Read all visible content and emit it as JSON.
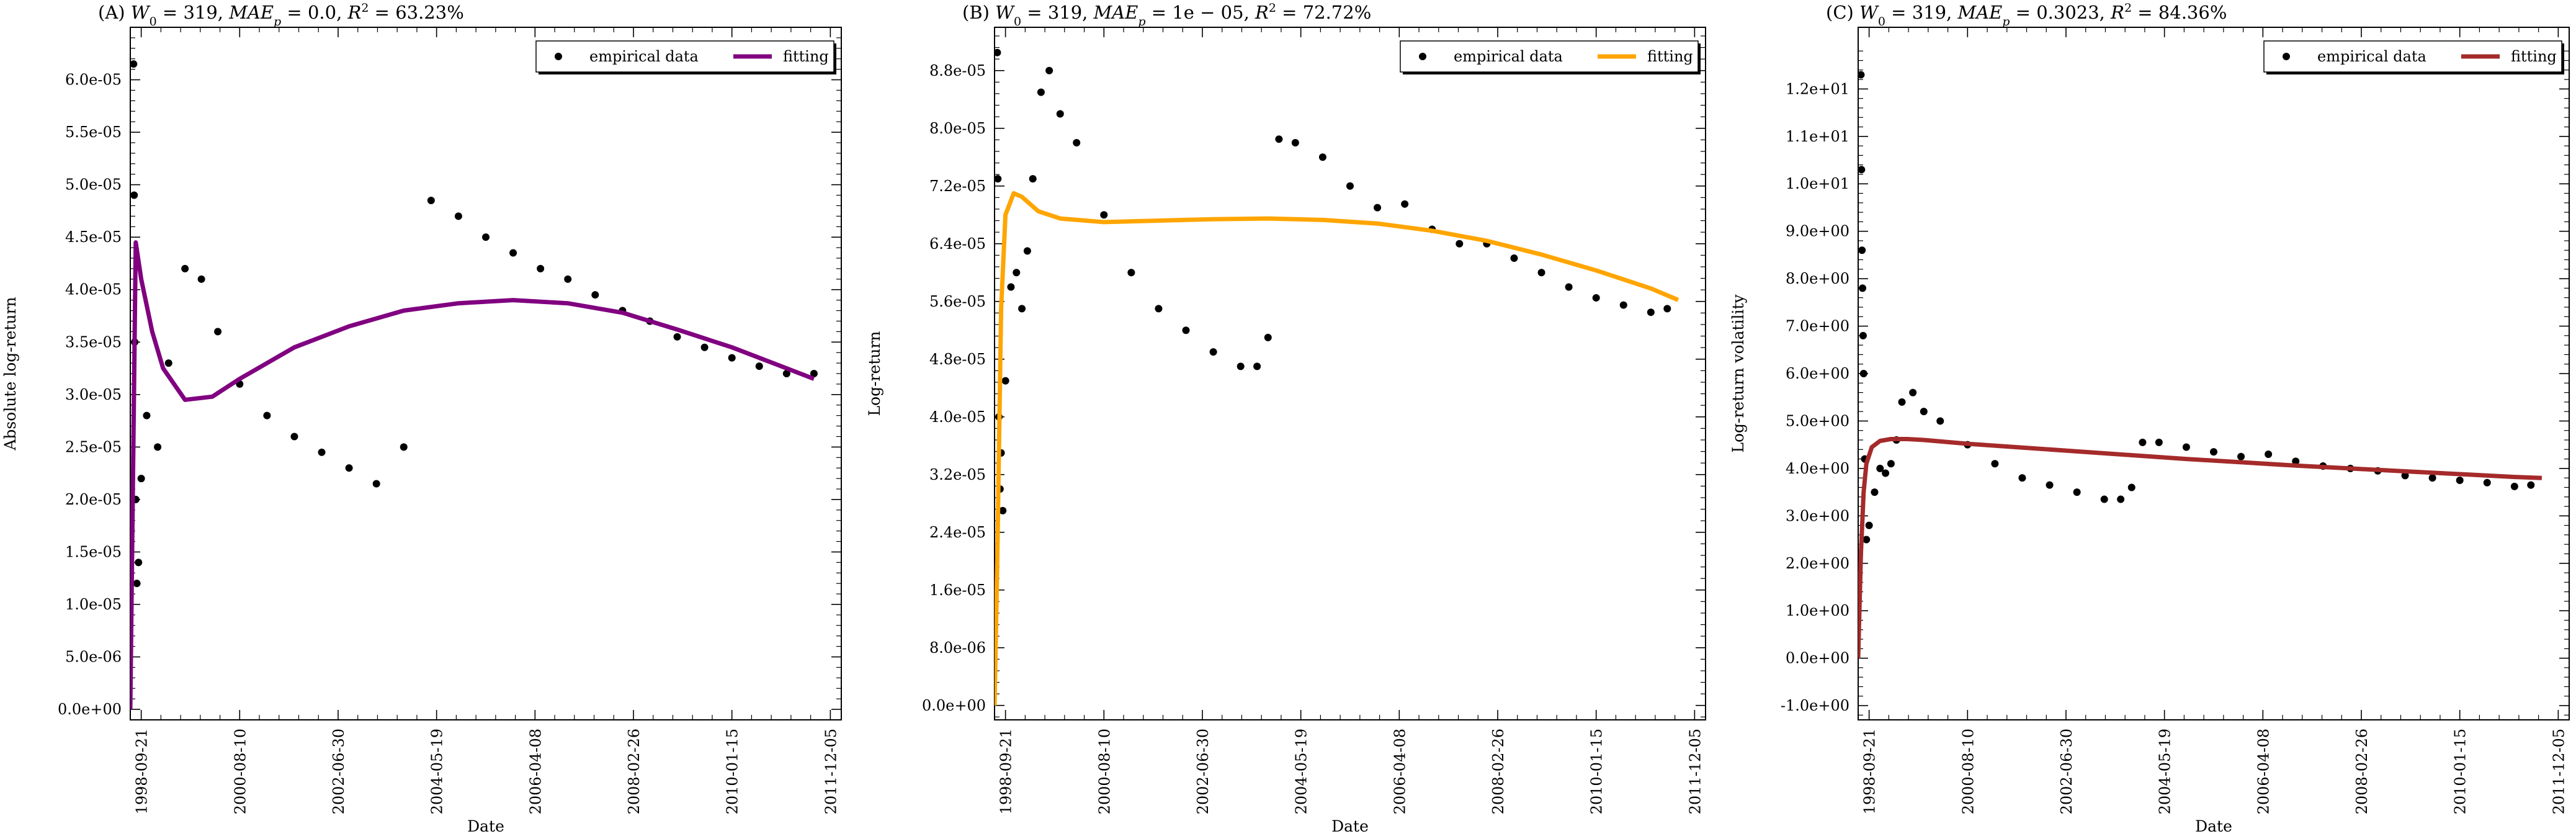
{
  "chart_data": [
    {
      "type": "scatter",
      "title": "(A) W_0 = 319, MAE_p = 0.0, R^2 = 63.23%",
      "title_parts": {
        "panel": "(A)",
        "w0": "319",
        "mae": "0.0",
        "r2": "63.23%"
      },
      "xlabel": "Date",
      "ylabel": "Absolute log-return",
      "xticks": [
        "1998-09-21",
        "2000-08-10",
        "2002-06-30",
        "2004-05-19",
        "2006-04-08",
        "2008-02-26",
        "2010-01-15",
        "2011-12-05"
      ],
      "ylim": [
        -1e-06,
        6.5e-05
      ],
      "yticks": [
        0.0,
        5e-06,
        1e-05,
        1.5e-05,
        2e-05,
        2.5e-05,
        3e-05,
        3.5e-05,
        4e-05,
        4.5e-05,
        5e-05,
        5.5e-05,
        6e-05
      ],
      "ytick_labels": [
        "0.0e+00",
        "5.0e-06",
        "1.0e-05",
        "1.5e-05",
        "2.0e-05",
        "2.5e-05",
        "3.0e-05",
        "3.5e-05",
        "4.0e-05",
        "4.5e-05",
        "5.0e-05",
        "5.5e-05",
        "6.0e-05"
      ],
      "legend": {
        "placement": "top-right",
        "empirical_label": "empirical data",
        "fitting_label": "fitting"
      },
      "fit_color": "#800080",
      "series": [
        {
          "name": "empirical data",
          "x": [
            0.06,
            0.07,
            0.08,
            0.1,
            0.12,
            0.15,
            0.2,
            0.3,
            0.5,
            0.7,
            1.0,
            1.3,
            1.6,
            2.0,
            2.5,
            3.0,
            3.5,
            4.0,
            4.5,
            5.0,
            5.5,
            6.0,
            6.5,
            7.0,
            7.5,
            8.0,
            8.5,
            9.0,
            9.5,
            10.0,
            10.5,
            11.0,
            11.5,
            12.0,
            12.5
          ],
          "y": [
            6.15e-05,
            4.9e-05,
            3.5e-05,
            2e-05,
            1.2e-05,
            1.4e-05,
            2.2e-05,
            2.8e-05,
            2.5e-05,
            3.3e-05,
            4.2e-05,
            4.1e-05,
            3.6e-05,
            3.1e-05,
            2.8e-05,
            2.6e-05,
            2.45e-05,
            2.3e-05,
            2.15e-05,
            2.5e-05,
            4.85e-05,
            4.7e-05,
            4.5e-05,
            4.35e-05,
            4.2e-05,
            4.1e-05,
            3.95e-05,
            3.8e-05,
            3.7e-05,
            3.55e-05,
            3.45e-05,
            3.35e-05,
            3.27e-05,
            3.2e-05,
            3.2e-05
          ]
        },
        {
          "name": "fitting",
          "x": [
            0.0,
            0.1,
            0.2,
            0.4,
            0.6,
            1.0,
            1.5,
            2.0,
            3.0,
            4.0,
            5.0,
            6.0,
            7.0,
            8.0,
            9.0,
            10.0,
            11.0,
            12.0,
            12.5
          ],
          "y": [
            0.0,
            4.45e-05,
            4.1e-05,
            3.6e-05,
            3.25e-05,
            2.95e-05,
            2.98e-05,
            3.15e-05,
            3.45e-05,
            3.65e-05,
            3.8e-05,
            3.87e-05,
            3.9e-05,
            3.87e-05,
            3.78e-05,
            3.62e-05,
            3.45e-05,
            3.25e-05,
            3.15e-05
          ]
        }
      ]
    },
    {
      "type": "scatter",
      "title": "(B) W_0 = 319, MAE_p = 1e-05, R^2 = 72.72%",
      "title_parts": {
        "panel": "(B)",
        "w0": "319",
        "mae": "1e − 05",
        "r2": "72.72%"
      },
      "xlabel": "Date",
      "ylabel": "Log-return",
      "xticks": [
        "1998-09-21",
        "2000-08-10",
        "2002-06-30",
        "2004-05-19",
        "2006-04-08",
        "2008-02-26",
        "2010-01-15",
        "2011-12-05"
      ],
      "ylim": [
        -2e-06,
        9.4e-05
      ],
      "yticks": [
        0.0,
        8e-06,
        1.6e-05,
        2.4e-05,
        3.2e-05,
        4e-05,
        4.8e-05,
        5.6e-05,
        6.4e-05,
        7.2e-05,
        8e-05,
        8.8e-05
      ],
      "ytick_labels": [
        "0.0e+00",
        "8.0e-06",
        "1.6e-05",
        "2.4e-05",
        "3.2e-05",
        "4.0e-05",
        "4.8e-05",
        "5.6e-05",
        "6.4e-05",
        "7.2e-05",
        "8.0e-05",
        "8.8e-05"
      ],
      "legend": {
        "placement": "top-right",
        "empirical_label": "empirical data",
        "fitting_label": "fitting"
      },
      "fit_color": "#FFA500",
      "series": [
        {
          "name": "empirical data",
          "x": [
            0.05,
            0.06,
            0.08,
            0.1,
            0.12,
            0.15,
            0.2,
            0.3,
            0.4,
            0.5,
            0.6,
            0.7,
            0.85,
            1.0,
            1.2,
            1.5,
            2.0,
            2.5,
            3.0,
            3.5,
            4.0,
            4.5,
            4.8,
            5.0,
            5.2,
            5.5,
            6.0,
            6.5,
            7.0,
            7.5,
            8.0,
            8.5,
            9.0,
            9.5,
            10.0,
            10.5,
            11.0,
            11.5,
            12.0,
            12.3
          ],
          "y": [
            9.05e-05,
            7.3e-05,
            4e-05,
            3e-05,
            3.5e-05,
            2.7e-05,
            4.5e-05,
            5.8e-05,
            6e-05,
            5.5e-05,
            6.3e-05,
            7.3e-05,
            8.5e-05,
            8.8e-05,
            8.2e-05,
            7.8e-05,
            6.8e-05,
            6e-05,
            5.5e-05,
            5.2e-05,
            4.9e-05,
            4.7e-05,
            4.7e-05,
            5.1e-05,
            7.85e-05,
            7.8e-05,
            7.6e-05,
            7.2e-05,
            6.9e-05,
            6.95e-05,
            6.6e-05,
            6.4e-05,
            6.4e-05,
            6.2e-05,
            6e-05,
            5.8e-05,
            5.65e-05,
            5.55e-05,
            5.45e-05,
            5.5e-05
          ]
        },
        {
          "name": "fitting",
          "x": [
            0.0,
            0.05,
            0.12,
            0.2,
            0.35,
            0.5,
            0.8,
            1.2,
            2.0,
            3.0,
            4.0,
            5.0,
            6.0,
            7.0,
            8.0,
            9.0,
            10.0,
            11.0,
            12.0,
            12.5
          ],
          "y": [
            0.0,
            2e-05,
            5.5e-05,
            6.8e-05,
            7.1e-05,
            7.05e-05,
            6.85e-05,
            6.75e-05,
            6.7e-05,
            6.72e-05,
            6.74e-05,
            6.75e-05,
            6.73e-05,
            6.68e-05,
            6.58e-05,
            6.44e-05,
            6.25e-05,
            6.03e-05,
            5.78e-05,
            5.62e-05
          ]
        }
      ]
    },
    {
      "type": "scatter",
      "title": "(C) W_0 = 319, MAE_p = 0.3023, R^2 = 84.36%",
      "title_parts": {
        "panel": "(C)",
        "w0": "319",
        "mae": "0.3023",
        "r2": "84.36%"
      },
      "xlabel": "Date",
      "ylabel": "Log-return volatility",
      "xticks": [
        "1998-09-21",
        "2000-08-10",
        "2002-06-30",
        "2004-05-19",
        "2006-04-08",
        "2008-02-26",
        "2010-01-15",
        "2011-12-05"
      ],
      "ylim": [
        -1.3,
        13.3
      ],
      "yticks": [
        -1.0,
        0.0,
        1.0,
        2.0,
        3.0,
        4.0,
        5.0,
        6.0,
        7.0,
        8.0,
        9.0,
        10.0,
        11.0,
        12.0
      ],
      "ytick_labels": [
        "-1.0e+00",
        "0.0e+00",
        "1.0e+00",
        "2.0e+00",
        "3.0e+00",
        "4.0e+00",
        "5.0e+00",
        "6.0e+00",
        "7.0e+00",
        "8.0e+00",
        "9.0e+00",
        "1.0e+01",
        "1.1e+01",
        "1.2e+01"
      ],
      "legend": {
        "placement": "top-right",
        "empirical_label": "empirical data",
        "fitting_label": "fitting"
      },
      "fit_color": "#A52A2A",
      "series": [
        {
          "name": "empirical data",
          "x": [
            0.05,
            0.06,
            0.07,
            0.08,
            0.09,
            0.1,
            0.12,
            0.15,
            0.2,
            0.3,
            0.4,
            0.5,
            0.6,
            0.7,
            0.8,
            1.0,
            1.2,
            1.5,
            2.0,
            2.5,
            3.0,
            3.5,
            4.0,
            4.5,
            4.8,
            5.0,
            5.2,
            5.5,
            6.0,
            6.5,
            7.0,
            7.5,
            8.0,
            8.5,
            9.0,
            9.5,
            10.0,
            10.5,
            11.0,
            11.5,
            12.0,
            12.3
          ],
          "y": [
            12.3,
            10.3,
            8.6,
            7.8,
            6.8,
            6.0,
            4.2,
            2.5,
            2.8,
            3.5,
            4.0,
            3.9,
            4.1,
            4.6,
            5.4,
            5.6,
            5.2,
            5.0,
            4.5,
            4.1,
            3.8,
            3.65,
            3.5,
            3.35,
            3.35,
            3.6,
            4.55,
            4.55,
            4.45,
            4.35,
            4.25,
            4.3,
            4.15,
            4.05,
            4.0,
            3.95,
            3.85,
            3.8,
            3.75,
            3.7,
            3.62,
            3.65
          ]
        },
        {
          "name": "fitting",
          "x": [
            0.0,
            0.05,
            0.1,
            0.15,
            0.25,
            0.4,
            0.6,
            0.9,
            1.2,
            2.0,
            3.0,
            4.0,
            5.0,
            6.0,
            7.0,
            8.0,
            9.0,
            10.0,
            11.0,
            12.0,
            12.5
          ],
          "y": [
            0.0,
            2.2,
            3.5,
            4.1,
            4.45,
            4.58,
            4.62,
            4.62,
            4.6,
            4.52,
            4.44,
            4.36,
            4.28,
            4.2,
            4.13,
            4.06,
            4.0,
            3.94,
            3.88,
            3.82,
            3.8
          ]
        }
      ]
    }
  ]
}
